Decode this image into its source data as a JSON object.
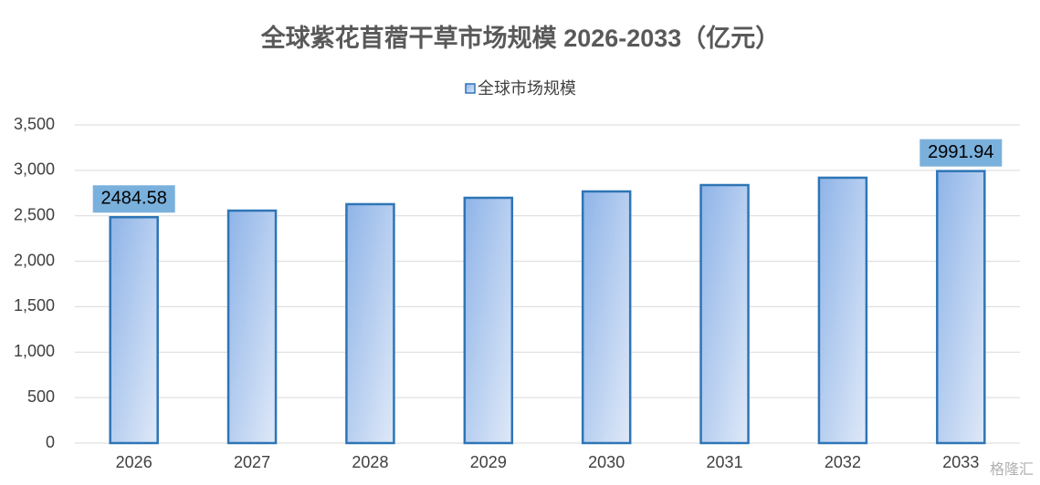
{
  "chart_data": {
    "type": "bar",
    "title": "全球紫花苜蓿干草市场规模 2026-2033（亿元）",
    "categories": [
      "2026",
      "2027",
      "2028",
      "2029",
      "2030",
      "2031",
      "2032",
      "2033"
    ],
    "series": [
      {
        "name": "全球市场规模",
        "color": "#2e75b6",
        "values": [
          2484.58,
          2557,
          2628,
          2698,
          2768,
          2838,
          2919,
          2991.94
        ],
        "value_labels": [
          "2484.58",
          null,
          null,
          null,
          null,
          null,
          null,
          "2991.94"
        ]
      }
    ],
    "ylim": [
      0,
      3500
    ],
    "yticks": [
      0,
      500,
      {
        "value": 1000,
        "label": "1,000"
      },
      {
        "value": 1500,
        "label": "1,500"
      },
      {
        "value": 2000,
        "label": "2,000"
      },
      {
        "value": 2500,
        "label": "2,500"
      },
      {
        "value": 3000,
        "label": "3,000"
      },
      {
        "value": 3500,
        "label": "3,500"
      }
    ],
    "grid": true,
    "legend": "top",
    "watermark": "格隆汇"
  }
}
